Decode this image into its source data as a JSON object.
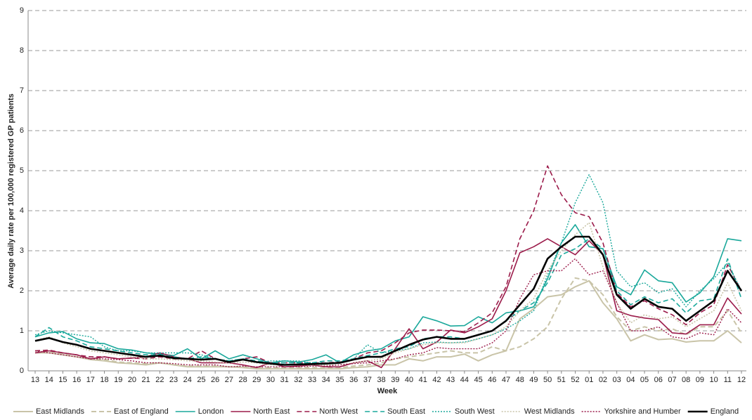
{
  "chart_data": {
    "type": "line",
    "y_label": "Average daily rate per 100,000 registered GP patients",
    "x_label": "Week",
    "categories": [
      "13",
      "14",
      "15",
      "16",
      "17",
      "18",
      "19",
      "20",
      "21",
      "22",
      "23",
      "24",
      "25",
      "26",
      "27",
      "28",
      "29",
      "30",
      "31",
      "32",
      "33",
      "34",
      "35",
      "36",
      "37",
      "38",
      "39",
      "40",
      "41",
      "42",
      "43",
      "44",
      "45",
      "46",
      "47",
      "48",
      "49",
      "50",
      "51",
      "52",
      "01",
      "02",
      "03",
      "04",
      "05",
      "06",
      "07",
      "08",
      "09",
      "10",
      "11",
      "12"
    ],
    "ylim": [
      0,
      9
    ],
    "yticks": [
      0,
      1,
      2,
      3,
      4,
      5,
      6,
      7,
      8,
      9
    ],
    "grid": true,
    "legend": "bottom",
    "series": [
      {
        "name": "East Midlands",
        "color": "#c9c4a8",
        "style": "solid",
        "width": 2,
        "values": [
          0.45,
          0.45,
          0.4,
          0.35,
          0.28,
          0.25,
          0.2,
          0.18,
          0.15,
          0.2,
          0.15,
          0.1,
          0.1,
          0.1,
          0.1,
          0.08,
          0.05,
          0.05,
          0.05,
          0.05,
          0.05,
          0.05,
          0.05,
          0.08,
          0.1,
          0.15,
          0.15,
          0.3,
          0.25,
          0.35,
          0.35,
          0.42,
          0.25,
          0.4,
          0.5,
          1.3,
          1.55,
          1.85,
          1.9,
          2.1,
          2.25,
          1.7,
          1.3,
          0.75,
          0.9,
          0.78,
          0.8,
          0.72,
          0.75,
          0.75,
          1.0,
          0.7
        ]
      },
      {
        "name": "East of England",
        "color": "#c9c4a8",
        "style": "dashed",
        "width": 2,
        "values": [
          0.5,
          0.48,
          0.42,
          0.35,
          0.3,
          0.28,
          0.22,
          0.2,
          0.18,
          0.2,
          0.15,
          0.12,
          0.12,
          0.12,
          0.1,
          0.1,
          0.08,
          0.08,
          0.08,
          0.08,
          0.08,
          0.08,
          0.08,
          0.12,
          0.15,
          0.2,
          0.3,
          0.35,
          0.4,
          0.45,
          0.5,
          0.45,
          0.45,
          0.6,
          0.5,
          0.6,
          0.8,
          1.1,
          1.8,
          2.32,
          2.25,
          1.9,
          1.35,
          1.0,
          1.1,
          1.0,
          1.05,
          0.9,
          1.1,
          1.1,
          1.5,
          0.95
        ]
      },
      {
        "name": "London",
        "color": "#1aa89b",
        "style": "solid",
        "width": 1.6,
        "values": [
          0.85,
          0.95,
          0.98,
          0.8,
          0.7,
          0.68,
          0.55,
          0.52,
          0.45,
          0.42,
          0.38,
          0.55,
          0.3,
          0.5,
          0.3,
          0.4,
          0.3,
          0.2,
          0.25,
          0.22,
          0.28,
          0.4,
          0.2,
          0.4,
          0.5,
          0.55,
          0.75,
          0.85,
          1.35,
          1.25,
          1.12,
          1.13,
          1.35,
          1.2,
          1.45,
          1.5,
          1.6,
          2.3,
          3.2,
          3.65,
          3.1,
          3.05,
          2.1,
          1.9,
          2.52,
          2.25,
          2.2,
          1.72,
          1.95,
          2.35,
          3.3,
          3.25
        ]
      },
      {
        "name": "North East",
        "color": "#9b1b4a",
        "style": "solid",
        "width": 1.6,
        "values": [
          0.45,
          0.5,
          0.45,
          0.4,
          0.3,
          0.35,
          0.3,
          0.32,
          0.35,
          0.45,
          0.35,
          0.3,
          0.2,
          0.2,
          0.2,
          0.15,
          0.08,
          0.2,
          0.1,
          0.12,
          0.15,
          0.1,
          0.1,
          0.2,
          0.25,
          0.08,
          0.55,
          1.05,
          0.55,
          0.72,
          1.02,
          0.95,
          1.1,
          1.3,
          2.0,
          2.95,
          3.1,
          3.3,
          3.1,
          2.9,
          3.25,
          2.9,
          1.5,
          1.38,
          1.32,
          1.28,
          0.95,
          0.92,
          1.15,
          1.15,
          1.82,
          1.42
        ]
      },
      {
        "name": "North West",
        "color": "#9b1b4a",
        "style": "dashed",
        "width": 1.6,
        "values": [
          0.5,
          0.52,
          0.45,
          0.4,
          0.35,
          0.35,
          0.3,
          0.32,
          0.3,
          0.35,
          0.3,
          0.3,
          0.5,
          0.3,
          0.2,
          0.3,
          0.35,
          0.2,
          0.2,
          0.2,
          0.2,
          0.2,
          0.22,
          0.3,
          0.45,
          0.5,
          0.7,
          0.95,
          1.02,
          1.02,
          1.0,
          0.98,
          1.2,
          1.45,
          2.1,
          3.3,
          4.0,
          5.12,
          4.4,
          3.95,
          3.85,
          3.2,
          1.95,
          1.6,
          1.75,
          1.55,
          1.4,
          1.15,
          1.45,
          1.65,
          2.65,
          2.0
        ]
      },
      {
        "name": "South East",
        "color": "#1aa89b",
        "style": "dashed",
        "width": 1.6,
        "values": [
          0.85,
          1.08,
          0.85,
          0.75,
          0.6,
          0.55,
          0.5,
          0.45,
          0.4,
          0.4,
          0.35,
          0.3,
          0.35,
          0.3,
          0.25,
          0.3,
          0.25,
          0.2,
          0.2,
          0.2,
          0.2,
          0.25,
          0.25,
          0.3,
          0.38,
          0.45,
          0.55,
          0.6,
          0.8,
          0.85,
          0.85,
          0.8,
          0.9,
          1.0,
          1.25,
          1.5,
          1.7,
          2.2,
          2.9,
          3.05,
          3.3,
          3.05,
          2.0,
          1.65,
          1.85,
          1.7,
          1.8,
          1.45,
          1.75,
          1.8,
          2.8,
          1.8
        ]
      },
      {
        "name": "South West",
        "color": "#1aa89b",
        "style": "dotted",
        "width": 1.4,
        "values": [
          0.9,
          1.0,
          0.95,
          0.9,
          0.85,
          0.6,
          0.5,
          0.5,
          0.45,
          0.45,
          0.45,
          0.45,
          0.4,
          0.3,
          0.25,
          0.3,
          0.2,
          0.25,
          0.25,
          0.25,
          0.2,
          0.2,
          0.2,
          0.3,
          0.65,
          0.45,
          0.5,
          0.55,
          0.7,
          0.72,
          0.7,
          0.72,
          0.8,
          0.9,
          1.05,
          1.25,
          1.5,
          2.4,
          3.2,
          4.2,
          4.9,
          4.2,
          2.5,
          2.1,
          2.2,
          1.95,
          2.05,
          1.6,
          2.0,
          2.3,
          2.7,
          2.0
        ]
      },
      {
        "name": "West Midlands",
        "color": "#c9c4a8",
        "style": "dotted",
        "width": 1.6,
        "values": [
          0.75,
          0.85,
          0.7,
          0.6,
          0.5,
          0.45,
          0.4,
          0.35,
          0.3,
          0.3,
          0.28,
          0.25,
          0.25,
          0.22,
          0.2,
          0.22,
          0.2,
          0.15,
          0.15,
          0.15,
          0.15,
          0.15,
          0.15,
          0.2,
          0.25,
          0.3,
          0.45,
          0.55,
          0.65,
          0.7,
          0.7,
          0.7,
          0.8,
          0.9,
          1.1,
          1.5,
          1.8,
          2.5,
          3.0,
          3.4,
          3.7,
          2.6,
          1.7,
          1.2,
          1.4,
          1.3,
          1.35,
          1.1,
          1.3,
          1.5,
          2.2,
          1.5
        ]
      },
      {
        "name": "Yorkshire and Humber",
        "color": "#9b1b4a",
        "style": "dotted",
        "width": 1.4,
        "values": [
          0.5,
          0.45,
          0.4,
          0.35,
          0.3,
          0.3,
          0.28,
          0.25,
          0.2,
          0.2,
          0.18,
          0.15,
          0.15,
          0.15,
          0.1,
          0.12,
          0.1,
          0.1,
          0.1,
          0.1,
          0.12,
          0.12,
          0.15,
          0.18,
          0.2,
          0.25,
          0.3,
          0.4,
          0.45,
          0.58,
          0.55,
          0.55,
          0.55,
          0.7,
          1.0,
          1.8,
          2.4,
          2.5,
          2.5,
          2.8,
          2.4,
          2.5,
          1.7,
          1.0,
          1.0,
          1.1,
          0.85,
          0.8,
          0.95,
          0.9,
          1.55,
          1.2
        ]
      },
      {
        "name": "England",
        "color": "#000000",
        "style": "solid",
        "width": 2.6,
        "values": [
          0.75,
          0.82,
          0.72,
          0.65,
          0.55,
          0.5,
          0.45,
          0.4,
          0.35,
          0.38,
          0.32,
          0.3,
          0.28,
          0.3,
          0.22,
          0.28,
          0.22,
          0.18,
          0.15,
          0.16,
          0.17,
          0.18,
          0.2,
          0.28,
          0.35,
          0.35,
          0.5,
          0.65,
          0.78,
          0.85,
          0.8,
          0.8,
          0.9,
          1.0,
          1.25,
          1.65,
          2.05,
          2.8,
          3.1,
          3.35,
          3.35,
          2.9,
          1.9,
          1.55,
          1.8,
          1.6,
          1.55,
          1.25,
          1.5,
          1.75,
          2.5,
          2.0
        ]
      }
    ]
  }
}
